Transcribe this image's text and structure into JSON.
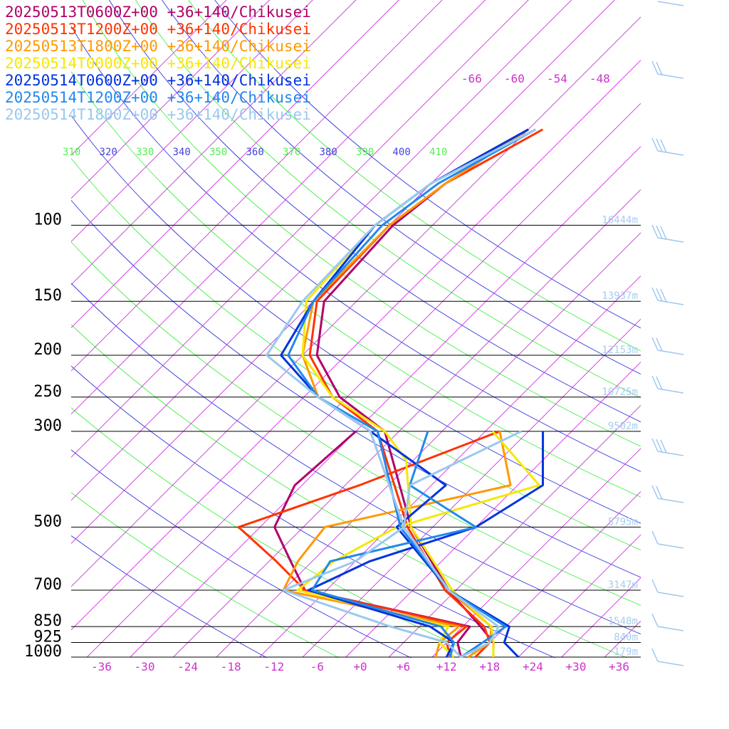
{
  "chart_data": {
    "type": "line",
    "title": "",
    "xlabel": "",
    "ylabel": "",
    "legend_position": "top-left",
    "grid": true,
    "pressure_levels": [
      100,
      150,
      200,
      250,
      300,
      500,
      700,
      850,
      925,
      1000
    ],
    "height_labels": [
      {
        "p": 100,
        "text": "16444m"
      },
      {
        "p": 150,
        "text": "13937m"
      },
      {
        "p": 200,
        "text": "12153m"
      },
      {
        "p": 250,
        "text": "10725m"
      },
      {
        "p": 300,
        "text": "9502m"
      },
      {
        "p": 500,
        "text": "5795m"
      },
      {
        "p": 700,
        "text": "3147m"
      },
      {
        "p": 850,
        "text": "1548m"
      },
      {
        "p": 925,
        "text": "840m"
      },
      {
        "p": 1000,
        "text": "179m"
      }
    ],
    "temperature_ticks": [
      {
        "value": -36,
        "label": "-36"
      },
      {
        "value": -30,
        "label": "-30"
      },
      {
        "value": -24,
        "label": "-24"
      },
      {
        "value": -18,
        "label": "-18"
      },
      {
        "value": -12,
        "label": "-12"
      },
      {
        "value": -6,
        "label": "-6"
      },
      {
        "value": 0,
        "label": "+0"
      },
      {
        "value": 6,
        "label": "+6"
      },
      {
        "value": 12,
        "label": "+12"
      },
      {
        "value": 18,
        "label": "+18"
      },
      {
        "value": 24,
        "label": "+24"
      },
      {
        "value": 30,
        "label": "+30"
      },
      {
        "value": 36,
        "label": "+36"
      }
    ],
    "upper_isotherm_labels": [
      "-66",
      "-60",
      "-54",
      "-48"
    ],
    "theta_labels": [
      {
        "text": "310",
        "color": "#55ee55"
      },
      {
        "text": "320",
        "color": "#4444dd"
      },
      {
        "text": "330",
        "color": "#55ee55"
      },
      {
        "text": "340",
        "color": "#4444dd"
      },
      {
        "text": "350",
        "color": "#55ee55"
      },
      {
        "text": "360",
        "color": "#4444dd"
      },
      {
        "text": "370",
        "color": "#55ee55"
      },
      {
        "text": "380",
        "color": "#4444dd"
      },
      {
        "text": "390",
        "color": "#55ee55"
      },
      {
        "text": "400",
        "color": "#4444dd"
      },
      {
        "text": "410",
        "color": "#55ee55"
      }
    ],
    "series": [
      {
        "name": "20250513T0600Z+00 +36+140/Chikusei",
        "color": "#b0006a",
        "temperature": [
          [
            1000,
            18.5
          ],
          [
            925,
            16.5
          ],
          [
            850,
            12.5
          ],
          [
            700,
            3
          ],
          [
            500,
            -11
          ],
          [
            300,
            -28
          ],
          [
            250,
            -39
          ],
          [
            200,
            -48
          ],
          [
            150,
            -54.5
          ],
          [
            100,
            -55.5
          ],
          [
            80,
            -54
          ],
          [
            60,
            -50
          ]
        ],
        "dewpoint": [
          [
            1000,
            14
          ],
          [
            925,
            11.5
          ],
          [
            850,
            11
          ],
          [
            700,
            -17
          ],
          [
            600,
            -23
          ],
          [
            500,
            -30
          ],
          [
            400,
            -33
          ],
          [
            300,
            -32
          ]
        ]
      },
      {
        "name": "20250513T1200Z+00 +36+140/Chikusei",
        "color": "#ff3300",
        "temperature": [
          [
            1000,
            16
          ],
          [
            925,
            16
          ],
          [
            850,
            13
          ],
          [
            700,
            2.5
          ],
          [
            500,
            -11.5
          ],
          [
            300,
            -29
          ],
          [
            250,
            -40
          ],
          [
            200,
            -49
          ],
          [
            150,
            -55.5
          ],
          [
            100,
            -56
          ],
          [
            80,
            -54
          ],
          [
            60,
            -48
          ]
        ],
        "dewpoint": [
          [
            1000,
            12.5
          ],
          [
            925,
            10
          ],
          [
            850,
            10.5
          ],
          [
            700,
            -17
          ],
          [
            600,
            -25
          ],
          [
            500,
            -35
          ],
          [
            400,
            -24
          ],
          [
            300,
            -12
          ]
        ]
      },
      {
        "name": "20250513T1800Z+00 +36+140/Chikusei",
        "color": "#ff9900",
        "temperature": [
          [
            1000,
            15
          ],
          [
            925,
            16
          ],
          [
            850,
            14
          ],
          [
            700,
            3
          ],
          [
            500,
            -12
          ],
          [
            300,
            -30
          ],
          [
            250,
            -42
          ],
          [
            200,
            -50
          ],
          [
            150,
            -56
          ],
          [
            100,
            -56
          ],
          [
            80,
            -54
          ],
          [
            60,
            -50
          ]
        ],
        "dewpoint": [
          [
            1000,
            10.5
          ],
          [
            925,
            9
          ],
          [
            850,
            9.5
          ],
          [
            700,
            -20
          ],
          [
            600,
            -22
          ],
          [
            500,
            -23
          ],
          [
            400,
            -3
          ],
          [
            300,
            -12
          ]
        ]
      },
      {
        "name": "20250514T0000Z+00 +36+140/Chikusei",
        "color": "#f4e800",
        "temperature": [
          [
            1000,
            18.5
          ],
          [
            925,
            16.5
          ],
          [
            850,
            14
          ],
          [
            700,
            3.5
          ],
          [
            500,
            -11
          ],
          [
            350,
            -21
          ],
          [
            300,
            -28
          ],
          [
            250,
            -40
          ],
          [
            200,
            -50
          ],
          [
            150,
            -57
          ],
          [
            100,
            -58
          ],
          [
            80,
            -56
          ],
          [
            60,
            -50
          ]
        ],
        "dewpoint": [
          [
            1000,
            13
          ],
          [
            925,
            9
          ],
          [
            850,
            8
          ],
          [
            700,
            -18
          ],
          [
            600,
            -17
          ],
          [
            500,
            -13
          ],
          [
            400,
            1
          ],
          [
            300,
            -13
          ]
        ]
      },
      {
        "name": "20250514T0600Z+00 +36+140/Chikusei",
        "color": "#0033dd",
        "temperature": [
          [
            1000,
            22
          ],
          [
            925,
            18
          ],
          [
            850,
            16.5
          ],
          [
            700,
            3
          ],
          [
            500,
            -13
          ],
          [
            400,
            -12
          ],
          [
            300,
            -30
          ],
          [
            250,
            -42
          ],
          [
            200,
            -53
          ],
          [
            150,
            -56
          ],
          [
            100,
            -58
          ],
          [
            80,
            -56
          ],
          [
            60,
            -50
          ]
        ],
        "dewpoint": [
          [
            1000,
            12
          ],
          [
            925,
            11
          ],
          [
            850,
            5.5
          ],
          [
            700,
            -16.5
          ],
          [
            600,
            -12
          ],
          [
            500,
            -2
          ],
          [
            400,
            1.5
          ],
          [
            300,
            -6
          ]
        ]
      },
      {
        "name": "20250514T1200Z+00 +36+140/Chikusei",
        "color": "#2288ee",
        "temperature": [
          [
            1000,
            14
          ],
          [
            925,
            15
          ],
          [
            850,
            16
          ],
          [
            700,
            3
          ],
          [
            500,
            -12.5
          ],
          [
            300,
            -29
          ],
          [
            250,
            -42
          ],
          [
            200,
            -52
          ],
          [
            150,
            -56
          ],
          [
            100,
            -57
          ],
          [
            80,
            -55
          ],
          [
            60,
            -49
          ]
        ],
        "dewpoint": [
          [
            1000,
            12.5
          ],
          [
            925,
            11
          ],
          [
            850,
            7
          ],
          [
            700,
            -16
          ],
          [
            600,
            -17.5
          ],
          [
            500,
            -2
          ],
          [
            400,
            -17
          ],
          [
            300,
            -22
          ]
        ]
      },
      {
        "name": "20250514T1800Z+00 +36+140/Chikusei",
        "color": "#99c8f0",
        "temperature": [
          [
            1000,
            14
          ],
          [
            925,
            16
          ],
          [
            850,
            15
          ],
          [
            700,
            3
          ],
          [
            500,
            -12
          ],
          [
            300,
            -30
          ],
          [
            250,
            -42
          ],
          [
            200,
            -55
          ],
          [
            150,
            -57.5
          ],
          [
            100,
            -58
          ],
          [
            80,
            -56
          ],
          [
            60,
            -49
          ]
        ],
        "dewpoint": [
          [
            1000,
            14
          ],
          [
            925,
            10
          ],
          [
            850,
            0
          ],
          [
            700,
            -20
          ],
          [
            600,
            -14
          ],
          [
            500,
            -12
          ],
          [
            400,
            -17
          ],
          [
            300,
            -9
          ]
        ]
      }
    ]
  }
}
